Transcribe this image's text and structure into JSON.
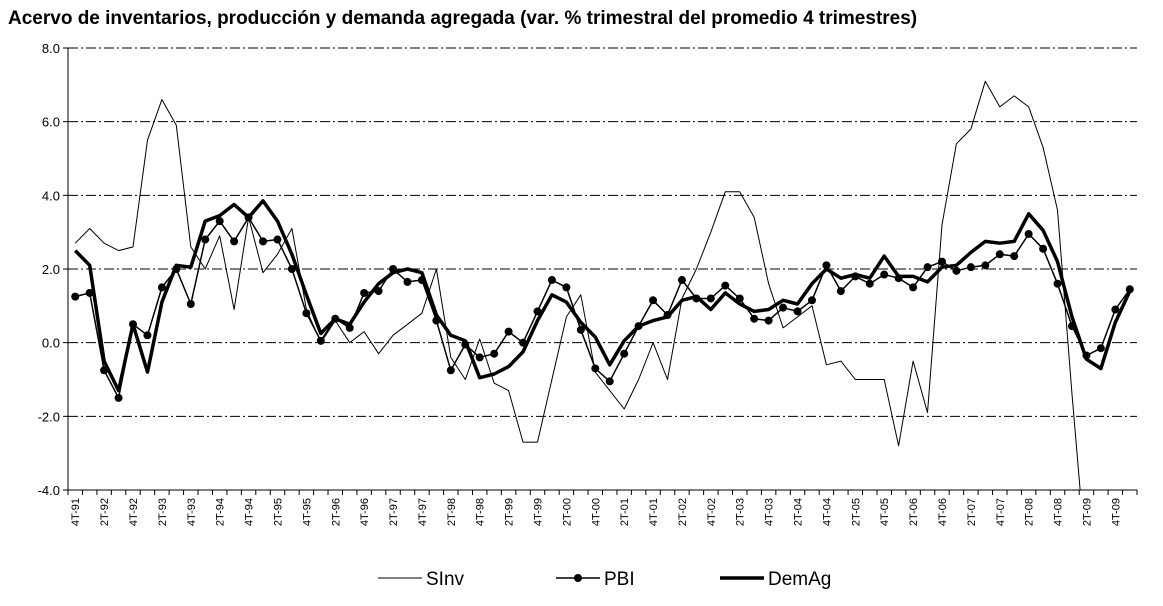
{
  "chart_data": {
    "type": "line",
    "title": "Acervo de inventarios, producción y demanda agregada (var. % trimestral del promedio 4 trimestres)",
    "categories": [
      "4T-91",
      null,
      "2T-92",
      null,
      "4T-92",
      null,
      "2T-93",
      null,
      "4T-93",
      null,
      "2T-94",
      null,
      "4T-94",
      null,
      "2T-95",
      null,
      "4T-95",
      null,
      "2T-96",
      null,
      "4T-96",
      null,
      "2T-97",
      null,
      "4T-97",
      null,
      "2T-98",
      null,
      "4T-98",
      null,
      "2T-99",
      null,
      "4T-99",
      null,
      "2T-00",
      null,
      "4T-00",
      null,
      "2T-01",
      null,
      "4T-01",
      null,
      "2T-02",
      null,
      "4T-02",
      null,
      "2T-03",
      null,
      "4T-03",
      null,
      "2T-04",
      null,
      "4T-04",
      null,
      "2T-05",
      null,
      "4T-05",
      null,
      "2T-06",
      null,
      "4T-06",
      null,
      "2T-07",
      null,
      "4T-07",
      null,
      "2T-08",
      null,
      "4T-08",
      null,
      "2T-09",
      null,
      "4T-09",
      null
    ],
    "series": [
      {
        "name": "SInv",
        "color": "#000000",
        "width": 1,
        "marker": false,
        "values": [
          2.7,
          3.1,
          2.7,
          2.5,
          2.6,
          5.5,
          6.6,
          5.9,
          2.6,
          2.0,
          2.9,
          0.9,
          3.4,
          1.9,
          2.4,
          3.1,
          0.9,
          0.0,
          0.6,
          0.0,
          0.3,
          -0.3,
          0.2,
          0.5,
          0.8,
          2.0,
          -0.4,
          -1.0,
          0.1,
          -1.1,
          -1.3,
          -2.7,
          -2.7,
          -1.0,
          0.7,
          1.3,
          -0.8,
          -1.3,
          -1.8,
          -1.0,
          0.0,
          -1.0,
          1.2,
          2.0,
          3.0,
          4.1,
          4.1,
          3.4,
          1.6,
          0.4,
          0.7,
          1.0,
          -0.6,
          -0.5,
          -1.0,
          -1.0,
          -1.0,
          -2.8,
          -0.5,
          -1.9,
          3.2,
          5.4,
          5.8,
          7.1,
          6.4,
          6.7,
          6.4,
          5.3,
          3.6,
          -1.4,
          -6.0,
          null,
          null,
          null
        ]
      },
      {
        "name": "PBI",
        "color": "#000000",
        "width": 1.5,
        "marker": true,
        "values": [
          1.25,
          1.35,
          -0.75,
          -1.5,
          0.5,
          0.2,
          1.5,
          2.0,
          1.05,
          2.8,
          3.3,
          2.75,
          3.4,
          2.75,
          2.8,
          2.0,
          0.8,
          0.05,
          0.65,
          0.4,
          1.35,
          1.4,
          2.0,
          1.65,
          1.7,
          0.6,
          -0.75,
          -0.05,
          -0.4,
          -0.3,
          0.3,
          0.0,
          0.85,
          1.7,
          1.5,
          0.35,
          -0.7,
          -1.05,
          -0.3,
          0.45,
          1.15,
          0.75,
          1.7,
          1.2,
          1.2,
          1.55,
          1.2,
          0.65,
          0.6,
          0.95,
          0.85,
          1.15,
          2.1,
          1.4,
          1.8,
          1.6,
          1.85,
          1.75,
          1.5,
          2.05,
          2.2,
          1.95,
          2.05,
          2.1,
          2.4,
          2.35,
          2.95,
          2.55,
          1.6,
          0.45,
          -0.35,
          -0.15,
          0.9,
          1.45
        ]
      },
      {
        "name": "DemAg",
        "color": "#000000",
        "width": 3.5,
        "marker": false,
        "values": [
          2.5,
          2.1,
          -0.5,
          -1.3,
          0.5,
          -0.8,
          1.1,
          2.1,
          2.05,
          3.3,
          3.45,
          3.75,
          3.4,
          3.85,
          3.3,
          2.4,
          1.3,
          0.25,
          0.65,
          0.5,
          1.1,
          1.6,
          1.9,
          2.0,
          1.9,
          0.75,
          0.2,
          0.05,
          -0.95,
          -0.85,
          -0.65,
          -0.25,
          0.6,
          1.3,
          1.1,
          0.55,
          0.15,
          -0.6,
          0.05,
          0.45,
          0.6,
          0.7,
          1.15,
          1.25,
          0.9,
          1.35,
          1.05,
          0.85,
          0.9,
          1.15,
          1.05,
          1.6,
          2.0,
          1.75,
          1.85,
          1.75,
          2.35,
          1.8,
          1.8,
          1.65,
          2.05,
          2.1,
          2.45,
          2.75,
          2.7,
          2.75,
          3.5,
          3.05,
          2.2,
          0.7,
          -0.45,
          -0.7,
          0.55,
          1.4
        ]
      }
    ],
    "ylim": [
      -4,
      8
    ],
    "yticks": [
      {
        "value": -4,
        "label": "-4.0"
      },
      {
        "value": -2,
        "label": "-2.0"
      },
      {
        "value": 0,
        "label": "0.0"
      },
      {
        "value": 2,
        "label": "2.0"
      },
      {
        "value": 4,
        "label": "4.0"
      },
      {
        "value": 6,
        "label": "6.0"
      },
      {
        "value": 8,
        "label": "8.0"
      }
    ],
    "grid": true,
    "legend": "bottom"
  }
}
